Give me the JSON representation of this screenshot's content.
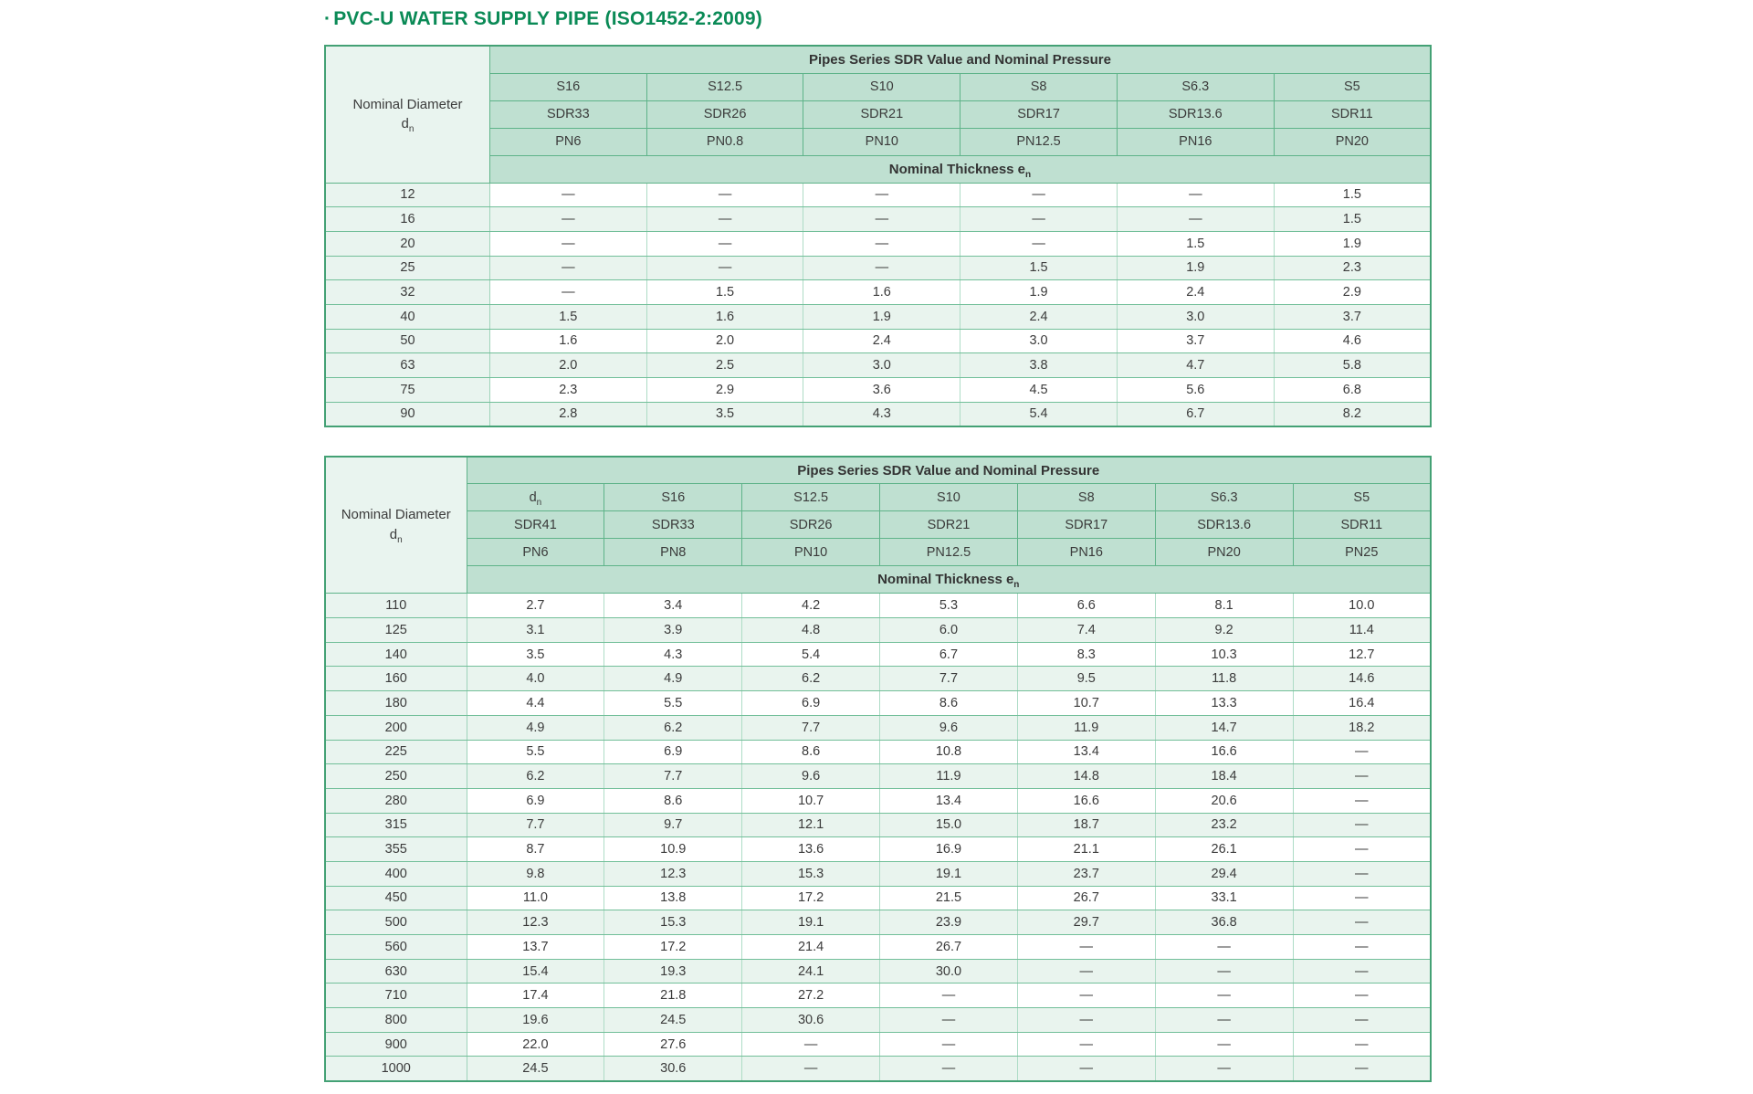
{
  "page": {
    "title_bullet": "·",
    "title": "PVC-U WATER SUPPLY PIPE (ISO1452-2:2009)"
  },
  "colors": {
    "title_green": "#0a8a56",
    "header_mint": "#bfe0d1",
    "light_mint": "#e9f4ef",
    "border_green": "#5eb389",
    "outer_border": "#44a175"
  },
  "tables": [
    {
      "group_header": "Pipes Series SDR Value and Nominal Pressure",
      "row_label": {
        "text": "Nominal Diameter",
        "symbol": "d",
        "sub": "n"
      },
      "thickness_header": {
        "text": "Nominal Thickness e",
        "sub": "n"
      },
      "series_row": [
        "S16",
        "S12.5",
        "S10",
        "S8",
        "S6.3",
        "S5"
      ],
      "sdr_row": [
        "SDR33",
        "SDR26",
        "SDR21",
        "SDR17",
        "SDR13.6",
        "SDR11"
      ],
      "pn_row": [
        "PN6",
        "PN0.8",
        "PN10",
        "PN12.5",
        "PN16",
        "PN20"
      ],
      "rows": [
        {
          "d": "12",
          "values": [
            "—",
            "—",
            "—",
            "—",
            "—",
            "1.5"
          ]
        },
        {
          "d": "16",
          "values": [
            "—",
            "—",
            "—",
            "—",
            "—",
            "1.5"
          ]
        },
        {
          "d": "20",
          "values": [
            "—",
            "—",
            "—",
            "—",
            "1.5",
            "1.9"
          ]
        },
        {
          "d": "25",
          "values": [
            "—",
            "—",
            "—",
            "1.5",
            "1.9",
            "2.3"
          ]
        },
        {
          "d": "32",
          "values": [
            "—",
            "1.5",
            "1.6",
            "1.9",
            "2.4",
            "2.9"
          ]
        },
        {
          "d": "40",
          "values": [
            "1.5",
            "1.6",
            "1.9",
            "2.4",
            "3.0",
            "3.7"
          ]
        },
        {
          "d": "50",
          "values": [
            "1.6",
            "2.0",
            "2.4",
            "3.0",
            "3.7",
            "4.6"
          ]
        },
        {
          "d": "63",
          "values": [
            "2.0",
            "2.5",
            "3.0",
            "3.8",
            "4.7",
            "5.8"
          ]
        },
        {
          "d": "75",
          "values": [
            "2.3",
            "2.9",
            "3.6",
            "4.5",
            "5.6",
            "6.8"
          ]
        },
        {
          "d": "90",
          "values": [
            "2.8",
            "3.5",
            "4.3",
            "5.4",
            "6.7",
            "8.2"
          ]
        }
      ]
    },
    {
      "group_header": "Pipes Series SDR Value and Nominal Pressure",
      "row_label": {
        "text": "Nominal Diameter",
        "symbol": "d",
        "sub": "n"
      },
      "thickness_header": {
        "text": "Nominal Thickness e",
        "sub": "n"
      },
      "series_row": [
        {
          "t": "d",
          "sub": "n"
        },
        "S16",
        "S12.5",
        "S10",
        "S8",
        "S6.3",
        "S5"
      ],
      "sdr_row": [
        "SDR41",
        "SDR33",
        "SDR26",
        "SDR21",
        "SDR17",
        "SDR13.6",
        "SDR11"
      ],
      "pn_row": [
        "PN6",
        "PN8",
        "PN10",
        "PN12.5",
        "PN16",
        "PN20",
        "PN25"
      ],
      "rows": [
        {
          "d": "110",
          "values": [
            "2.7",
            "3.4",
            "4.2",
            "5.3",
            "6.6",
            "8.1",
            "10.0"
          ]
        },
        {
          "d": "125",
          "values": [
            "3.1",
            "3.9",
            "4.8",
            "6.0",
            "7.4",
            "9.2",
            "11.4"
          ]
        },
        {
          "d": "140",
          "values": [
            "3.5",
            "4.3",
            "5.4",
            "6.7",
            "8.3",
            "10.3",
            "12.7"
          ]
        },
        {
          "d": "160",
          "values": [
            "4.0",
            "4.9",
            "6.2",
            "7.7",
            "9.5",
            "11.8",
            "14.6"
          ]
        },
        {
          "d": "180",
          "values": [
            "4.4",
            "5.5",
            "6.9",
            "8.6",
            "10.7",
            "13.3",
            "16.4"
          ]
        },
        {
          "d": "200",
          "values": [
            "4.9",
            "6.2",
            "7.7",
            "9.6",
            "11.9",
            "14.7",
            "18.2"
          ]
        },
        {
          "d": "225",
          "values": [
            "5.5",
            "6.9",
            "8.6",
            "10.8",
            "13.4",
            "16.6",
            "—"
          ]
        },
        {
          "d": "250",
          "values": [
            "6.2",
            "7.7",
            "9.6",
            "11.9",
            "14.8",
            "18.4",
            "—"
          ]
        },
        {
          "d": "280",
          "values": [
            "6.9",
            "8.6",
            "10.7",
            "13.4",
            "16.6",
            "20.6",
            "—"
          ]
        },
        {
          "d": "315",
          "values": [
            "7.7",
            "9.7",
            "12.1",
            "15.0",
            "18.7",
            "23.2",
            "—"
          ]
        },
        {
          "d": "355",
          "values": [
            "8.7",
            "10.9",
            "13.6",
            "16.9",
            "21.1",
            "26.1",
            "—"
          ]
        },
        {
          "d": "400",
          "values": [
            "9.8",
            "12.3",
            "15.3",
            "19.1",
            "23.7",
            "29.4",
            "—"
          ]
        },
        {
          "d": "450",
          "values": [
            "11.0",
            "13.8",
            "17.2",
            "21.5",
            "26.7",
            "33.1",
            "—"
          ]
        },
        {
          "d": "500",
          "values": [
            "12.3",
            "15.3",
            "19.1",
            "23.9",
            "29.7",
            "36.8",
            "—"
          ]
        },
        {
          "d": "560",
          "values": [
            "13.7",
            "17.2",
            "21.4",
            "26.7",
            "—",
            "—",
            "—"
          ]
        },
        {
          "d": "630",
          "values": [
            "15.4",
            "19.3",
            "24.1",
            "30.0",
            "—",
            "—",
            "—"
          ]
        },
        {
          "d": "710",
          "values": [
            "17.4",
            "21.8",
            "27.2",
            "—",
            "—",
            "—",
            "—"
          ]
        },
        {
          "d": "800",
          "values": [
            "19.6",
            "24.5",
            "30.6",
            "—",
            "—",
            "—",
            "—"
          ]
        },
        {
          "d": "900",
          "values": [
            "22.0",
            "27.6",
            "—",
            "—",
            "—",
            "—",
            "—"
          ]
        },
        {
          "d": "1000",
          "values": [
            "24.5",
            "30.6",
            "—",
            "—",
            "—",
            "—",
            "—"
          ]
        }
      ]
    }
  ]
}
